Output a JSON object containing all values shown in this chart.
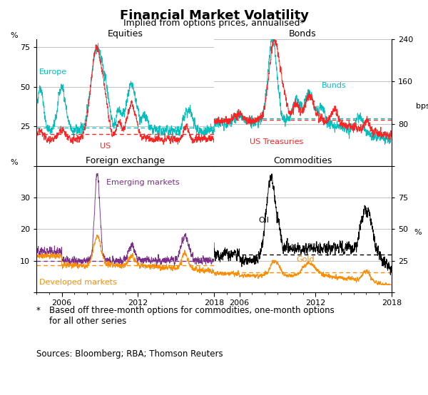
{
  "title": "Financial Market Volatility",
  "subtitle": "Implied from options prices, annualised*",
  "footnote_star": "*",
  "footnote_text": "Based off three-month options for commodities, one-month options\nfor all other series",
  "sources": "Sources: Bloomberg; RBA; Thomson Reuters",
  "bg_color": "#FFFFFF",
  "grid_color": "#AAAAAA",
  "panels": {
    "equities": {
      "title": "Equities",
      "ylabel_left": "%",
      "ylim": [
        0,
        80
      ],
      "yticks": [
        0,
        25,
        50,
        75
      ],
      "avg_europe": 24.0,
      "avg_us": 20.0,
      "color_europe": "#00BFBF",
      "color_us": "#FF2222"
    },
    "bonds": {
      "title": "Bonds",
      "ylabel_right": "bps",
      "ylim": [
        0,
        240
      ],
      "yticks": [
        0,
        80,
        160,
        240
      ],
      "avg_bunds": 90.0,
      "avg_ust": 88.0,
      "color_bunds": "#00BFBF",
      "color_ust": "#FF2222"
    },
    "fx": {
      "title": "Foreign exchange",
      "ylabel_left": "%",
      "ylim": [
        0,
        40
      ],
      "yticks": [
        0,
        10,
        20,
        30
      ],
      "avg_em": 10.0,
      "avg_dm": 8.5,
      "color_em": "#7B2D8B",
      "color_dm": "#FF8C00"
    },
    "commodities": {
      "title": "Commodities",
      "ylabel_right": "%",
      "ylim": [
        0,
        100
      ],
      "yticks": [
        0,
        25,
        50,
        75
      ],
      "avg_oil": 30.0,
      "avg_gold": 16.0,
      "color_oil": "#000000",
      "color_gold": "#FF8C00"
    }
  }
}
